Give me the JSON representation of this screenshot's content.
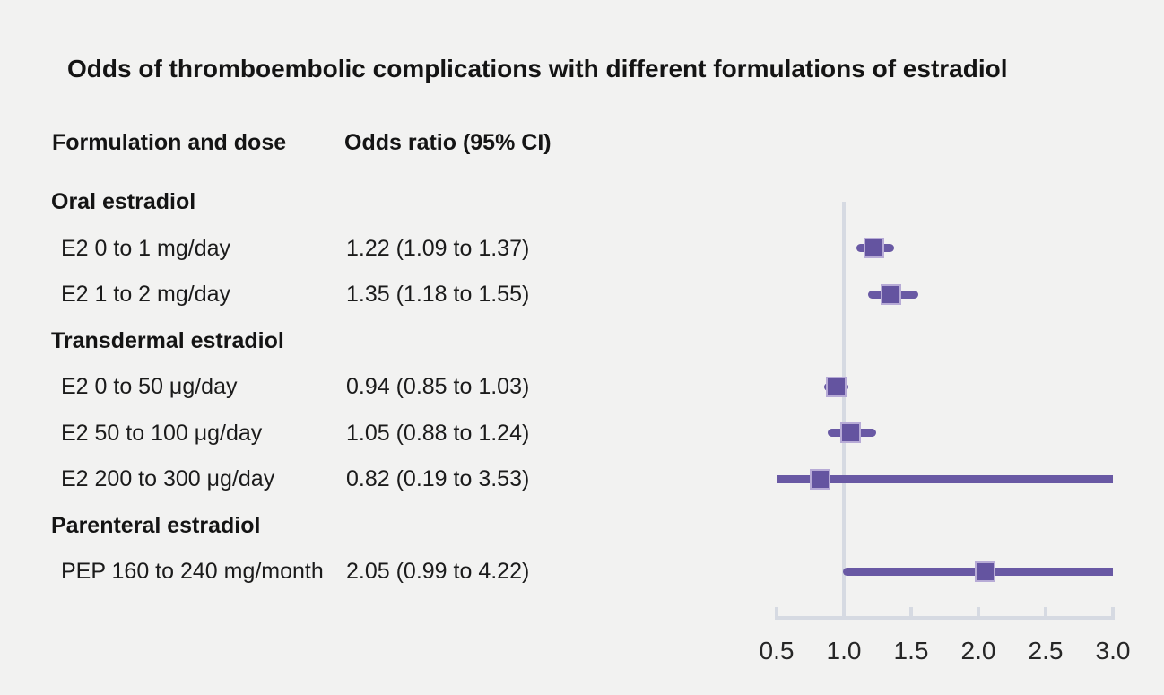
{
  "title": "Odds of thromboembolic complications with different formulations of estradiol",
  "columns": {
    "left": "Formulation and dose",
    "right": "Odds ratio (95% CI)"
  },
  "chart_data": {
    "type": "forest",
    "title": "Odds of thromboembolic complications with different formulations of estradiol",
    "xlabel": "Odds ratio",
    "axis": {
      "min": 0.5,
      "max": 3.0,
      "tick_values": [
        0.5,
        1.0,
        1.5,
        2.0,
        2.5,
        3.0
      ],
      "tick_labels": [
        "0.5",
        "1.0",
        "1.5",
        "2.0",
        "2.5",
        "3.0"
      ],
      "reference_line": 1.0,
      "scale": "linear",
      "grid": false
    },
    "groups": [
      {
        "label": "Oral estradiol",
        "rows": [
          {
            "label": "E2 0 to 1 mg/day",
            "display": "1.22 (1.09 to 1.37)",
            "or": 1.22,
            "lo": 1.09,
            "hi": 1.37
          },
          {
            "label": "E2 1 to 2 mg/day",
            "display": "1.35 (1.18 to 1.55)",
            "or": 1.35,
            "lo": 1.18,
            "hi": 1.55
          }
        ]
      },
      {
        "label": "Transdermal estradiol",
        "rows": [
          {
            "label": "E2 0 to 50 μg/day",
            "display": "0.94 (0.85 to 1.03)",
            "or": 0.94,
            "lo": 0.85,
            "hi": 1.03
          },
          {
            "label": "E2 50 to 100 μg/day",
            "display": "1.05 (0.88 to 1.24)",
            "or": 1.05,
            "lo": 0.88,
            "hi": 1.24
          },
          {
            "label": "E2 200 to 300 μg/day",
            "display": "0.82 (0.19 to 3.53)",
            "or": 0.82,
            "lo": 0.19,
            "hi": 3.53
          }
        ]
      },
      {
        "label": "Parenteral estradiol",
        "rows": [
          {
            "label": "PEP 160 to 240 mg/month",
            "display": "2.05 (0.99 to 4.22)",
            "or": 2.05,
            "lo": 0.99,
            "hi": 4.22
          }
        ]
      }
    ]
  },
  "colors": {
    "background": "#f2f2f1",
    "marker_fill": "#6454a0",
    "marker_border": "#b7abd6",
    "ci_line": "#6959a4",
    "axis_line": "#d6dae2",
    "text": "#141414"
  }
}
